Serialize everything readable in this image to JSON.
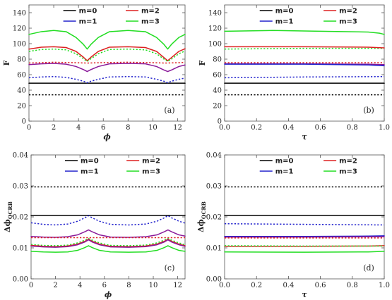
{
  "colors": {
    "m0": "#000000",
    "m1": "#2020cc",
    "m2": "#dd2020",
    "m3": "#22dd22",
    "mix": "#8a1a9a"
  },
  "legend_labels": [
    "m=0",
    "m=1",
    "m=2",
    "m=3"
  ],
  "chart_data": [
    {
      "type": "line",
      "panel_label": "(a)",
      "xlabel": "ϕ",
      "ylabel": "F",
      "xlim": [
        0,
        12.6
      ],
      "ylim": [
        0,
        150
      ],
      "xticks": [
        0,
        2,
        4,
        6,
        8,
        10,
        12
      ],
      "yticks": [
        0,
        20,
        40,
        60,
        80,
        100,
        120,
        140
      ],
      "legend_position": "top",
      "series": [
        {
          "name": "m=0",
          "style": "solid",
          "color": "m0",
          "x": [
            0,
            12.6
          ],
          "y": [
            49,
            49
          ]
        },
        {
          "name": "m=0",
          "style": "dotted",
          "color": "m0",
          "x": [
            0,
            12.6
          ],
          "y": [
            34,
            34
          ]
        },
        {
          "name": "m=1",
          "style": "solid",
          "color": "mix",
          "x": [
            0,
            1,
            2,
            3,
            3.8,
            4.4,
            4.7,
            5.0,
            5.6,
            6.5,
            8,
            9.4,
            10.3,
            10.9,
            11.2,
            11.5,
            12.1,
            12.6
          ],
          "y": [
            73,
            74,
            74.5,
            73.5,
            70.5,
            66.5,
            64,
            66.5,
            70.5,
            74,
            74.5,
            74,
            70.5,
            66,
            64,
            66,
            70.5,
            72.5
          ]
        },
        {
          "name": "m=1",
          "style": "dotted",
          "color": "m1",
          "x": [
            0,
            1,
            2,
            3,
            3.8,
            4.4,
            4.7,
            5.0,
            5.6,
            6.5,
            8,
            9.4,
            10.3,
            10.9,
            11.2,
            11.5,
            12.1,
            12.6
          ],
          "y": [
            56,
            57,
            57.5,
            56.5,
            54,
            51.5,
            49.5,
            51.5,
            54,
            57,
            57.5,
            57,
            54,
            51.5,
            49.5,
            51.5,
            54,
            55.5
          ]
        },
        {
          "name": "",
          "style": "dotted",
          "color": "m2",
          "x": [
            0,
            2,
            3.5,
            4.7,
            6,
            8,
            9.8,
            11.0,
            12.3,
            12.6
          ],
          "y": [
            75,
            76,
            75.5,
            75,
            75.5,
            76,
            75.5,
            75,
            75.5,
            76
          ]
        },
        {
          "name": "m=2",
          "style": "solid",
          "color": "m2",
          "x": [
            0,
            1,
            2,
            3,
            3.8,
            4.4,
            4.7,
            5.0,
            5.6,
            6.5,
            8,
            9.4,
            10.3,
            10.9,
            11.2,
            11.5,
            12.1,
            12.6
          ],
          "y": [
            93,
            95.5,
            96,
            95,
            90,
            82.5,
            78,
            82.5,
            90,
            95.5,
            96,
            95,
            90,
            82,
            78,
            82,
            90,
            93.5
          ]
        },
        {
          "name": "m=3",
          "style": "dotted",
          "color": "m3",
          "x": [
            0,
            1,
            2,
            3,
            3.8,
            4.4,
            4.7,
            5.0,
            5.6,
            6.5,
            8,
            9.4,
            10.3,
            10.9,
            11.2,
            11.5,
            12.1,
            12.6
          ],
          "y": [
            90,
            92.5,
            93,
            92,
            87,
            80.5,
            77,
            80.5,
            87,
            92.5,
            93,
            92,
            87,
            80,
            77,
            80,
            87,
            90.5
          ]
        },
        {
          "name": "m=3",
          "style": "solid",
          "color": "m3",
          "x": [
            0,
            1,
            2,
            3,
            3.8,
            4.4,
            4.7,
            5.0,
            5.6,
            6.5,
            8,
            9.4,
            10.3,
            10.9,
            11.2,
            11.5,
            12.1,
            12.6
          ],
          "y": [
            112,
            115.5,
            117,
            115.5,
            108,
            99,
            93,
            99,
            108,
            115.5,
            117,
            115.5,
            108,
            99,
            93,
            99,
            108,
            112
          ]
        }
      ]
    },
    {
      "type": "line",
      "panel_label": "(b)",
      "xlabel": "τ",
      "ylabel": "F",
      "xlim": [
        0,
        1
      ],
      "ylim": [
        0,
        150
      ],
      "xticks": [
        0.0,
        0.2,
        0.4,
        0.6,
        0.8,
        1.0
      ],
      "yticks": [
        0,
        20,
        40,
        60,
        80,
        100,
        120,
        140
      ],
      "legend_position": "top",
      "series": [
        {
          "name": "m=0",
          "style": "solid",
          "color": "m0",
          "x": [
            0,
            1
          ],
          "y": [
            49,
            49
          ]
        },
        {
          "name": "m=0",
          "style": "dotted",
          "color": "m0",
          "x": [
            0,
            1
          ],
          "y": [
            34,
            34
          ]
        },
        {
          "name": "m=1",
          "style": "dotted",
          "color": "m1",
          "x": [
            0,
            0.5,
            1
          ],
          "y": [
            56,
            57,
            57.5
          ]
        },
        {
          "name": "m=1",
          "style": "solid",
          "color": "mix",
          "x": [
            0,
            0.5,
            0.9,
            1
          ],
          "y": [
            74,
            74,
            73.5,
            73
          ]
        },
        {
          "name": "m=1",
          "style": "solid",
          "color": "m1",
          "x": [
            0,
            0.5,
            0.9,
            1
          ],
          "y": [
            73.5,
            73.5,
            72.5,
            71.5
          ]
        },
        {
          "name": "",
          "style": "dotted",
          "color": "m2",
          "x": [
            0,
            1
          ],
          "y": [
            75.5,
            75.5
          ]
        },
        {
          "name": "m=3",
          "style": "dotted",
          "color": "m3",
          "x": [
            0,
            0.5,
            1
          ],
          "y": [
            93,
            94,
            94
          ]
        },
        {
          "name": "m=2",
          "style": "solid",
          "color": "m2",
          "x": [
            0,
            0.5,
            0.9,
            1
          ],
          "y": [
            96,
            96,
            95.5,
            94.5
          ]
        },
        {
          "name": "m=3",
          "style": "solid",
          "color": "m3",
          "x": [
            0,
            0.3,
            0.6,
            0.9,
            0.97,
            1
          ],
          "y": [
            116,
            117,
            116,
            115,
            113.5,
            112
          ]
        }
      ]
    },
    {
      "type": "line",
      "panel_label": "(c)",
      "xlabel": "ϕ",
      "ylabel": "Δϕ_QCRB",
      "xlim": [
        0,
        12.6
      ],
      "ylim": [
        0,
        0.04
      ],
      "xticks": [
        0,
        2,
        4,
        6,
        8,
        10,
        12
      ],
      "yticks": [
        0.0,
        0.01,
        0.02,
        0.03,
        0.04
      ],
      "legend_position": "top",
      "series": [
        {
          "name": "m=0",
          "style": "dotted",
          "color": "m0",
          "x": [
            0,
            12.6
          ],
          "y": [
            0.0297,
            0.0297
          ]
        },
        {
          "name": "m=0",
          "style": "solid",
          "color": "m0",
          "x": [
            0,
            12.6
          ],
          "y": [
            0.0205,
            0.0205
          ]
        },
        {
          "name": "m=1",
          "style": "dotted",
          "color": "m1",
          "x": [
            0,
            1,
            2,
            3,
            3.8,
            4.4,
            4.7,
            5.0,
            5.6,
            6.5,
            8,
            9.4,
            10.3,
            10.9,
            11.2,
            11.5,
            12.1,
            12.6
          ],
          "y": [
            0.0181,
            0.0176,
            0.0174,
            0.0177,
            0.0186,
            0.0197,
            0.0204,
            0.0197,
            0.0186,
            0.0176,
            0.0174,
            0.0177,
            0.0186,
            0.0197,
            0.0204,
            0.0197,
            0.0186,
            0.018
          ]
        },
        {
          "name": "m=1",
          "style": "solid",
          "color": "mix",
          "x": [
            0,
            1,
            2,
            3,
            3.8,
            4.4,
            4.7,
            5.0,
            5.6,
            6.5,
            8,
            9.4,
            10.3,
            10.9,
            11.2,
            11.5,
            12.1,
            12.6
          ],
          "y": [
            0.0137,
            0.0135,
            0.0134,
            0.0136,
            0.0142,
            0.0152,
            0.0158,
            0.0152,
            0.0142,
            0.0135,
            0.0134,
            0.0136,
            0.0142,
            0.0152,
            0.0158,
            0.0152,
            0.0142,
            0.0138
          ]
        },
        {
          "name": "",
          "style": "dotted",
          "color": "m2",
          "x": [
            0,
            12.6
          ],
          "y": [
            0.0133,
            0.0133
          ]
        },
        {
          "name": "m=3",
          "style": "dotted",
          "color": "m3",
          "x": [
            0,
            1,
            2,
            3,
            3.8,
            4.4,
            4.7,
            5.0,
            5.6,
            6.5,
            8,
            9.4,
            10.3,
            10.9,
            11.2,
            11.5,
            12.1,
            12.6
          ],
          "y": [
            0.0111,
            0.0108,
            0.0107,
            0.0109,
            0.0116,
            0.0125,
            0.013,
            0.0125,
            0.0116,
            0.0108,
            0.0107,
            0.0109,
            0.0116,
            0.0125,
            0.013,
            0.0125,
            0.0116,
            0.011
          ]
        },
        {
          "name": "m=2",
          "style": "solid",
          "color": "m2",
          "x": [
            0,
            1,
            2,
            3,
            3.8,
            4.4,
            4.7,
            5.0,
            5.6,
            6.5,
            8,
            9.4,
            10.3,
            10.9,
            11.2,
            11.5,
            12.1,
            12.6
          ],
          "y": [
            0.0108,
            0.0105,
            0.0104,
            0.0106,
            0.0112,
            0.0121,
            0.0128,
            0.0121,
            0.0112,
            0.0105,
            0.0104,
            0.0106,
            0.0112,
            0.0121,
            0.0128,
            0.0121,
            0.0112,
            0.0107
          ]
        },
        {
          "name": "m=2",
          "style": "solid",
          "color": "mix",
          "x": [
            0,
            1,
            2,
            3,
            3.8,
            4.4,
            4.7,
            5.0,
            5.6,
            6.5,
            8,
            9.4,
            10.3,
            10.9,
            11.2,
            11.5,
            12.1,
            12.6
          ],
          "y": [
            0.0106,
            0.0103,
            0.0102,
            0.0104,
            0.011,
            0.0119,
            0.0126,
            0.0119,
            0.011,
            0.0103,
            0.0102,
            0.0104,
            0.011,
            0.0119,
            0.0126,
            0.0119,
            0.011,
            0.0105
          ]
        },
        {
          "name": "m=3",
          "style": "solid",
          "color": "m3",
          "x": [
            0,
            1,
            2,
            3,
            3.8,
            4.4,
            4.7,
            5.0,
            5.6,
            6.5,
            8,
            9.4,
            10.3,
            10.9,
            11.2,
            11.5,
            12.1,
            12.6
          ],
          "y": [
            0.0089,
            0.0087,
            0.0086,
            0.0087,
            0.0092,
            0.0101,
            0.0107,
            0.0101,
            0.0092,
            0.0087,
            0.0086,
            0.0087,
            0.0092,
            0.0101,
            0.0107,
            0.0101,
            0.0092,
            0.0089
          ]
        }
      ]
    },
    {
      "type": "line",
      "panel_label": "(d)",
      "xlabel": "τ",
      "ylabel": "Δϕ_QCRB",
      "xlim": [
        0,
        1
      ],
      "ylim": [
        0,
        0.04
      ],
      "xticks": [
        0.0,
        0.2,
        0.4,
        0.6,
        0.8,
        1.0
      ],
      "yticks": [
        0.0,
        0.01,
        0.02,
        0.03,
        0.04
      ],
      "legend_position": "top",
      "series": [
        {
          "name": "m=0",
          "style": "dotted",
          "color": "m0",
          "x": [
            0,
            1
          ],
          "y": [
            0.0297,
            0.0297
          ]
        },
        {
          "name": "m=0",
          "style": "solid",
          "color": "m0",
          "x": [
            0,
            1
          ],
          "y": [
            0.0205,
            0.0205
          ]
        },
        {
          "name": "m=1",
          "style": "dotted",
          "color": "m1",
          "x": [
            0,
            0.5,
            1
          ],
          "y": [
            0.0178,
            0.0176,
            0.0174
          ]
        },
        {
          "name": "m=1",
          "style": "solid",
          "color": "m1",
          "x": [
            0,
            0.5,
            0.9,
            1
          ],
          "y": [
            0.0137,
            0.0137,
            0.0138,
            0.0139
          ]
        },
        {
          "name": "m=1",
          "style": "solid",
          "color": "mix",
          "x": [
            0,
            0.5,
            1
          ],
          "y": [
            0.0135,
            0.0135,
            0.0136
          ]
        },
        {
          "name": "",
          "style": "dotted",
          "color": "m2",
          "x": [
            0,
            1
          ],
          "y": [
            0.0132,
            0.0132
          ]
        },
        {
          "name": "m=2",
          "style": "solid",
          "color": "m2",
          "x": [
            0,
            0.5,
            0.9,
            1
          ],
          "y": [
            0.0105,
            0.0105,
            0.0106,
            0.0107
          ]
        },
        {
          "name": "m=3",
          "style": "dotted",
          "color": "m3",
          "x": [
            0,
            0.5,
            1
          ],
          "y": [
            0.0107,
            0.0106,
            0.0106
          ]
        },
        {
          "name": "m=3",
          "style": "solid",
          "color": "m3",
          "x": [
            0,
            0.5,
            0.9,
            1
          ],
          "y": [
            0.0087,
            0.0086,
            0.0087,
            0.0089
          ]
        }
      ]
    }
  ]
}
